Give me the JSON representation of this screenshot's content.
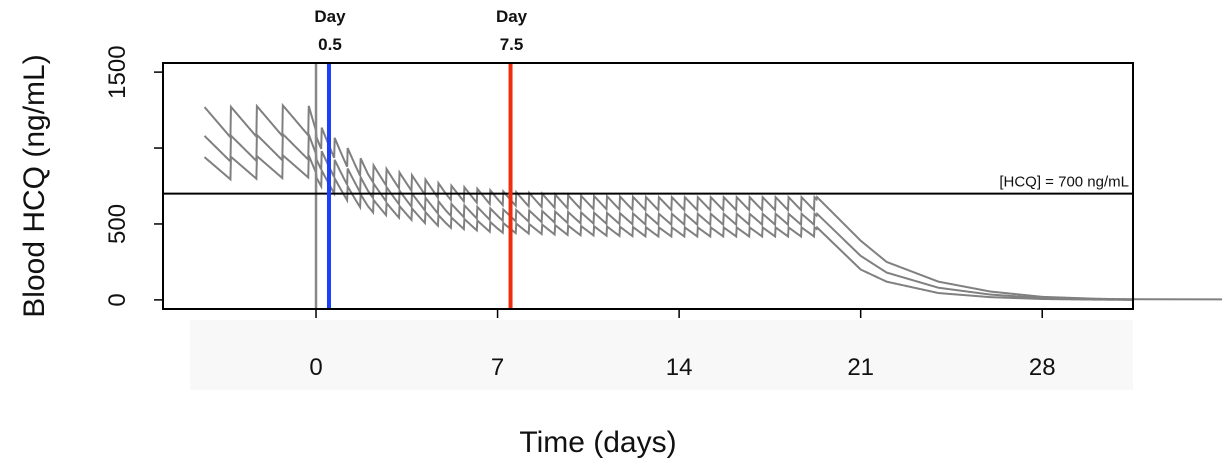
{
  "chart_data": {
    "type": "line",
    "title": "",
    "xlabel": "Time (days)",
    "ylabel": "Blood HCQ (ng/mL)",
    "xlim": [
      -5.9,
      31.5
    ],
    "ylim": [
      -60,
      1560
    ],
    "x_ticks": [
      0,
      7,
      14,
      21,
      28
    ],
    "x_tick_labels": [
      "0",
      "7",
      "14",
      "21",
      "28"
    ],
    "y_ticks": [
      0,
      500,
      1500
    ],
    "y_tick_labels": [
      "0",
      "500",
      "1500"
    ],
    "reference_line": {
      "y": 700,
      "label": "[HCQ] = 700 ng/mL"
    },
    "markers": [
      {
        "x": 0.5,
        "top": "Day",
        "bottom": "0.5",
        "color": "#1a3fff",
        "label_color": "#6b7fe6"
      },
      {
        "x": 7.5,
        "top": "Day",
        "bottom": "7.5",
        "color": "#ee2c10",
        "label_color": "#f0806b"
      }
    ],
    "dose_start_line": {
      "x": 0,
      "color": "#888888"
    },
    "series": [
      {
        "values": [
          [
            -4.3,
            1270
          ],
          [
            -0.3,
            1290
          ],
          [
            0.0,
            1170
          ],
          [
            2,
            900
          ],
          [
            5,
            760
          ],
          [
            7,
            720
          ],
          [
            10,
            690
          ],
          [
            13,
            680
          ],
          [
            16,
            680
          ],
          [
            19,
            680
          ],
          [
            19.3,
            680
          ],
          [
            21,
            390
          ],
          [
            22,
            250
          ],
          [
            24,
            120
          ],
          [
            26,
            55
          ],
          [
            28,
            20
          ],
          [
            30,
            8
          ],
          [
            31.5,
            3
          ]
        ]
      },
      {
        "values": [
          [
            -4.3,
            1080
          ],
          [
            -0.3,
            1100
          ],
          [
            0.0,
            1010
          ],
          [
            2,
            780
          ],
          [
            5,
            640
          ],
          [
            7,
            600
          ],
          [
            10,
            580
          ],
          [
            13,
            570
          ],
          [
            16,
            570
          ],
          [
            19,
            570
          ],
          [
            19.3,
            570
          ],
          [
            21,
            290
          ],
          [
            22,
            180
          ],
          [
            24,
            80
          ],
          [
            26,
            35
          ],
          [
            28,
            12
          ],
          [
            30,
            4
          ],
          [
            31.5,
            1
          ]
        ]
      },
      {
        "values": [
          [
            -4.3,
            940
          ],
          [
            -0.3,
            960
          ],
          [
            0.0,
            880
          ],
          [
            2,
            670
          ],
          [
            5,
            550
          ],
          [
            7,
            510
          ],
          [
            10,
            490
          ],
          [
            13,
            480
          ],
          [
            16,
            480
          ],
          [
            19,
            480
          ],
          [
            19.3,
            480
          ],
          [
            21,
            200
          ],
          [
            22,
            120
          ],
          [
            24,
            45
          ],
          [
            26,
            18
          ],
          [
            28,
            6
          ],
          [
            30,
            2
          ],
          [
            31.5,
            0
          ]
        ]
      }
    ],
    "line_color": "#808080",
    "grid": false,
    "legend": "none"
  }
}
